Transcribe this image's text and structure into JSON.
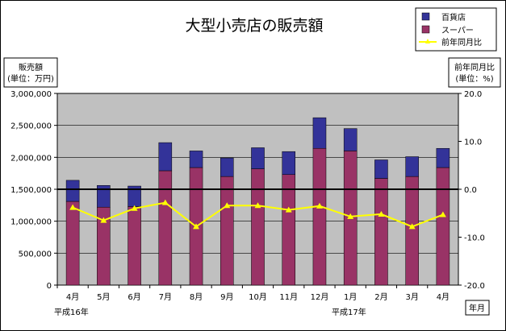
{
  "chart_data": {
    "type": "bar+line",
    "title": "大型小売店の販売額",
    "categories": [
      "4月",
      "5月",
      "6月",
      "7月",
      "8月",
      "9月",
      "10月",
      "11月",
      "12月",
      "1月",
      "2月",
      "3月",
      "4月"
    ],
    "era_labels": [
      "平成16年",
      "平成17年"
    ],
    "x_axis_label": "年月",
    "y_left": {
      "label_line1": "販売額",
      "label_line2": "(単位：万円)",
      "ylim": [
        0,
        3000000
      ],
      "ticks": [
        "0",
        "500,000",
        "1,000,000",
        "1,500,000",
        "2,000,000",
        "2,500,000",
        "3,000,000"
      ]
    },
    "y_right": {
      "label_line1": "前年同月比",
      "label_line2": "(単位：%)",
      "ylim": [
        -20,
        20
      ],
      "ticks": [
        "-20.0",
        "-10.0",
        "0.0",
        "10.0",
        "20.0"
      ]
    },
    "legend": {
      "placement": "top-right",
      "items": [
        "百貨店",
        "スーパー",
        "前年同月比"
      ]
    },
    "series": [
      {
        "name": "スーパー",
        "kind": "stacked-bar",
        "color": "#993366",
        "values": [
          1310000,
          1220000,
          1230000,
          1790000,
          1840000,
          1700000,
          1820000,
          1730000,
          2140000,
          2100000,
          1670000,
          1700000,
          1840000
        ]
      },
      {
        "name": "百貨店",
        "kind": "stacked-bar",
        "color": "#333399",
        "values": [
          330000,
          340000,
          320000,
          440000,
          260000,
          290000,
          330000,
          360000,
          480000,
          350000,
          290000,
          310000,
          300000
        ]
      },
      {
        "name": "前年同月比",
        "kind": "line",
        "axis": "right",
        "color": "#ffff00",
        "values": [
          -3.8,
          -6.5,
          -4.0,
          -2.8,
          -7.8,
          -3.4,
          -3.4,
          -4.3,
          -3.5,
          -5.7,
          -5.2,
          -7.8,
          -5.3
        ]
      }
    ]
  }
}
